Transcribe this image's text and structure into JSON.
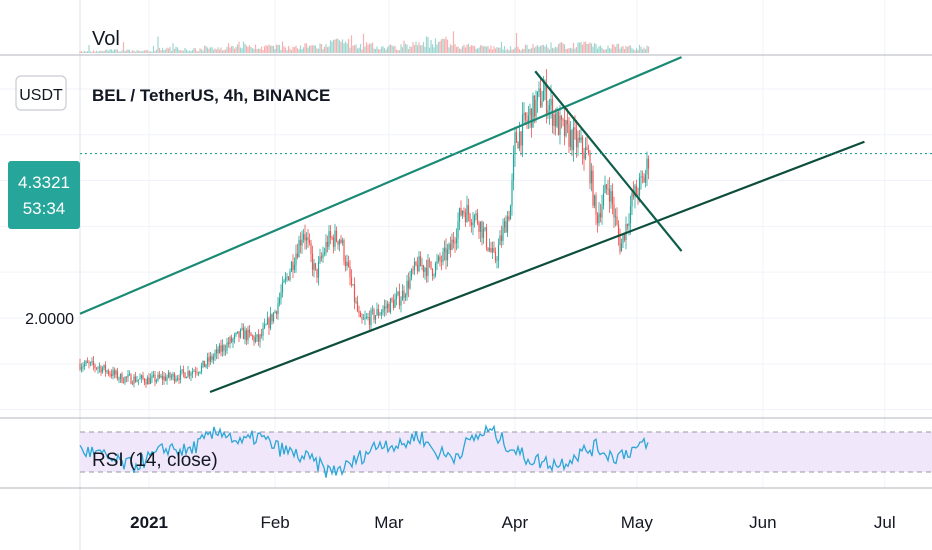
{
  "header": {
    "title": "BEL / TetherUS, 4h, BINANCE",
    "currency_badge": "USDT"
  },
  "panes": {
    "volume_label": "Vol",
    "rsi_label": "RSI (14, close)"
  },
  "price_tag": {
    "price": "4.3321",
    "countdown": "53:34",
    "color": "#26a69a"
  },
  "colors": {
    "up": "#26a69a",
    "down": "#ef5350",
    "channel_upper": "#1b8a74",
    "channel_lower": "#0d4d3c",
    "rsi_line": "#2aa7d6",
    "rsi_band": "#f1e7fb"
  },
  "chart_data": [
    {
      "type": "candlestick",
      "title": "BEL / TetherUS, 4h, BINANCE",
      "ylabel": "USDT",
      "x_tick_labels": [
        "2021",
        "Feb",
        "Mar",
        "Apr",
        "May",
        "Jun",
        "Jul"
      ],
      "y_tick_labels": [
        "2.0000"
      ],
      "last_price": 4.3321,
      "ylim": [
        0.9,
        5.8
      ],
      "price_path": [
        [
          "2020-12-15",
          1.35
        ],
        [
          "2020-12-20",
          1.3
        ],
        [
          "2020-12-25",
          1.15
        ],
        [
          "2021-01-01",
          1.12
        ],
        [
          "2021-01-08",
          1.18
        ],
        [
          "2021-01-14",
          1.3
        ],
        [
          "2021-01-20",
          1.62
        ],
        [
          "2021-01-24",
          1.78
        ],
        [
          "2021-01-28",
          1.68
        ],
        [
          "2021-02-01",
          2.1
        ],
        [
          "2021-02-05",
          2.75
        ],
        [
          "2021-02-08",
          3.25
        ],
        [
          "2021-02-11",
          2.6
        ],
        [
          "2021-02-14",
          3.1
        ],
        [
          "2021-02-17",
          3.15
        ],
        [
          "2021-02-20",
          2.4
        ],
        [
          "2021-02-22",
          1.92
        ],
        [
          "2021-02-27",
          2.1
        ],
        [
          "2021-03-04",
          2.3
        ],
        [
          "2021-03-08",
          2.75
        ],
        [
          "2021-03-12",
          2.7
        ],
        [
          "2021-03-16",
          2.95
        ],
        [
          "2021-03-19",
          3.55
        ],
        [
          "2021-03-23",
          3.4
        ],
        [
          "2021-03-27",
          2.8
        ],
        [
          "2021-03-31",
          3.6
        ],
        [
          "2021-04-01",
          4.5
        ],
        [
          "2021-04-05",
          4.9
        ],
        [
          "2021-04-08",
          5.2
        ],
        [
          "2021-04-12",
          4.7
        ],
        [
          "2021-04-16",
          4.5
        ],
        [
          "2021-04-19",
          4.3
        ],
        [
          "2021-04-21",
          3.4
        ],
        [
          "2021-04-24",
          3.9
        ],
        [
          "2021-04-27",
          3.0
        ],
        [
          "2021-04-30",
          3.7
        ],
        [
          "2021-05-03",
          4.0
        ],
        [
          "2021-05-04",
          4.3
        ]
      ],
      "trendlines": [
        {
          "role": "channel-upper",
          "points": [
            [
              "2020-12-15",
              2.06
            ],
            [
              "2021-05-12",
              5.7
            ]
          ]
        },
        {
          "role": "channel-lower",
          "points": [
            [
              "2021-01-16",
              0.95
            ],
            [
              "2021-06-26",
              4.5
            ]
          ]
        },
        {
          "role": "descending",
          "points": [
            [
              "2021-04-06",
              5.5
            ],
            [
              "2021-05-12",
              2.95
            ]
          ]
        }
      ],
      "grid": true
    },
    {
      "type": "bar",
      "title": "Vol",
      "series": [
        {
          "values": [
            0.15,
            0.22,
            0.18,
            0.35,
            0.28,
            0.4,
            0.65,
            0.5,
            0.45,
            0.55,
            0.8,
            0.6,
            0.5,
            0.7,
            0.95,
            0.55,
            0.45,
            0.4,
            0.5,
            0.6,
            0.75,
            0.5,
            0.45
          ]
        }
      ]
    },
    {
      "type": "line",
      "title": "RSI (14, close)",
      "ylim": [
        20,
        85
      ],
      "bands": [
        30,
        70
      ],
      "series": [
        {
          "values": [
            52,
            48,
            40,
            36,
            45,
            55,
            50,
            62,
            72,
            58,
            66,
            55,
            48,
            42,
            30,
            35,
            48,
            60,
            55,
            68,
            50,
            45,
            62,
            72,
            58,
            45,
            40,
            38,
            48,
            55,
            45,
            52,
            58
          ]
        }
      ]
    }
  ]
}
